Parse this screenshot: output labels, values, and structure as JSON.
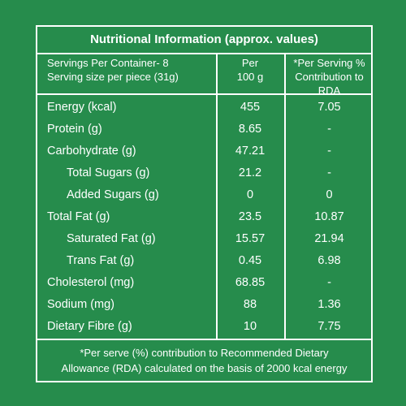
{
  "title": "Nutritional Information (approx. values)",
  "header": {
    "servings_line1": "Servings Per Container- 8",
    "servings_line2": "Serving size per piece (31g)",
    "per_line1": "Per",
    "per_line2": "100 g",
    "rda_line1": "*Per Serving %",
    "rda_line2": "Contribution to RDA"
  },
  "rows": [
    {
      "name": "Energy (kcal)",
      "per100g": "455",
      "rda": "7.05"
    },
    {
      "name": "Protein (g)",
      "per100g": "8.65",
      "rda": "-"
    },
    {
      "name": "Carbohydrate (g)",
      "per100g": "47.21",
      "rda": "-"
    },
    {
      "name": "Total Sugars (g)",
      "per100g": "21.2",
      "rda": "-"
    },
    {
      "name": "Added Sugars (g)",
      "per100g": "0",
      "rda": "0"
    },
    {
      "name": "Total Fat (g)",
      "per100g": "23.5",
      "rda": "10.87"
    },
    {
      "name": "Saturated Fat (g)",
      "per100g": "15.57",
      "rda": "21.94"
    },
    {
      "name": "Trans Fat (g)",
      "per100g": "0.45",
      "rda": "6.98"
    },
    {
      "name": "Cholesterol (mg)",
      "per100g": "68.85",
      "rda": "-"
    },
    {
      "name": "Sodium (mg)",
      "per100g": "88",
      "rda": "1.36"
    },
    {
      "name": "Dietary Fibre (g)",
      "per100g": "10",
      "rda": "7.75"
    }
  ],
  "footer": {
    "line1": "*Per serve (%) contribution to Recommended Dietary",
    "line2": "Allowance (RDA) calculated on the basis of 2000 kcal energy"
  },
  "colors": {
    "background": "#268c4c",
    "text": "#ffffff"
  }
}
